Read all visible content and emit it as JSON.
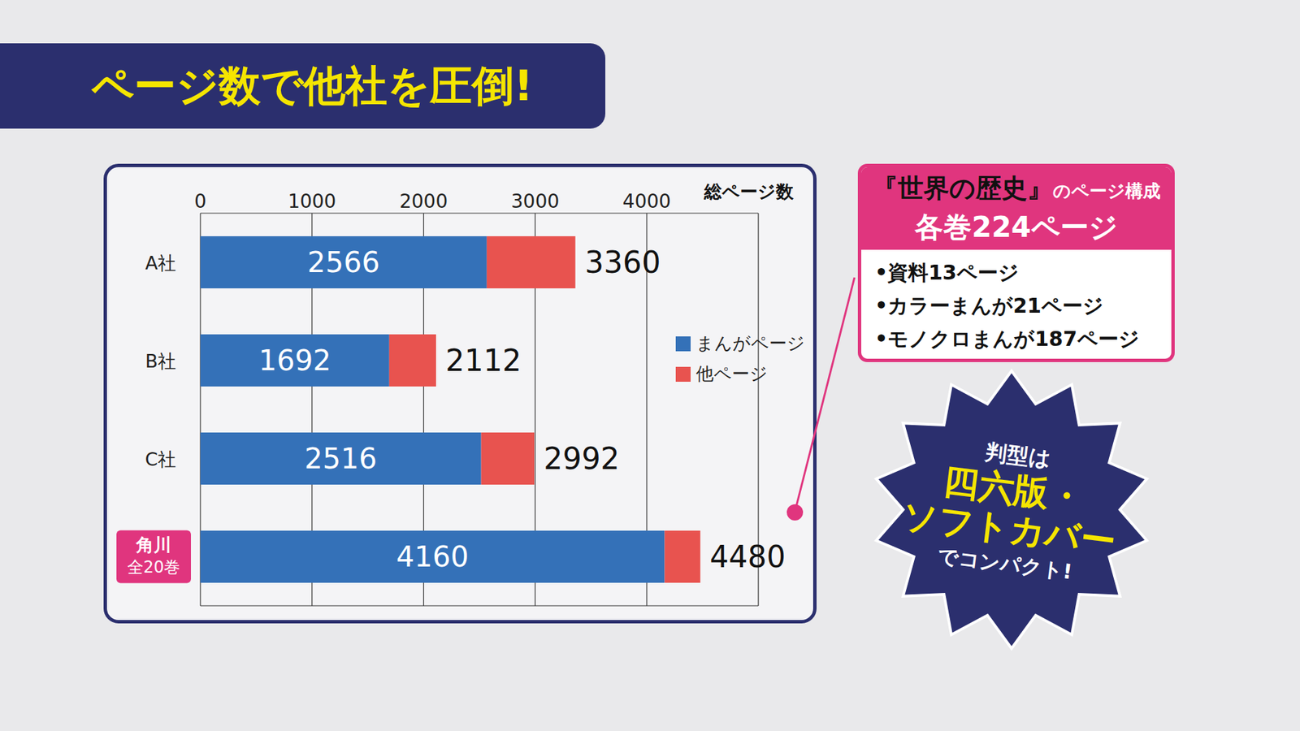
{
  "title": "ページ数で他社を圧倒!",
  "chart_data": {
    "type": "bar",
    "orientation": "horizontal",
    "stacked": true,
    "categories": [
      "A社",
      "B社",
      "C社",
      "角川 全20巻"
    ],
    "series": [
      {
        "name": "まんがページ",
        "color": "#3471b8",
        "values": [
          2566,
          1692,
          2516,
          4160
        ]
      },
      {
        "name": "他ページ",
        "color": "#e8534f",
        "values": [
          794,
          420,
          476,
          320
        ]
      }
    ],
    "totals": [
      3360,
      2112,
      2992,
      4480
    ],
    "x_label": "総ページ数",
    "xlim": [
      0,
      5000
    ],
    "xticks": [
      0,
      1000,
      2000,
      3000,
      4000
    ],
    "grid": true,
    "data_labels": true,
    "legend": "right"
  },
  "info_box": {
    "book_title": "『世界の歴史』",
    "title_suffix": "のページ構成",
    "subtitle": "各巻224ページ",
    "items": [
      "•資料13ページ",
      "•カラーまんが21ページ",
      "•モノクロまんが187ページ"
    ]
  },
  "badge": {
    "top": "判型は",
    "lines": [
      "四六版・",
      "ソフトカバー"
    ],
    "bottom": "でコンパクト!"
  }
}
